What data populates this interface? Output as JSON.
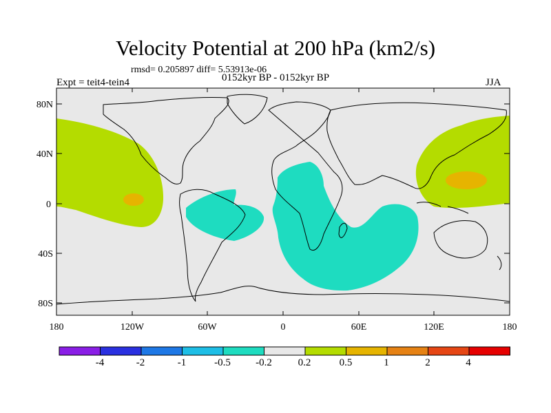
{
  "header": {
    "title": "Velocity Potential at 200 hPa (km2/s)",
    "rmsd_line": "rmsd= 0.205897 diff= 5.53913e-06",
    "period": "0152kyr BP - 0152kyr BP",
    "expt": "Expt = teit4-tein4",
    "season": "JJA"
  },
  "axes": {
    "lat_labels": [
      "80N",
      "40N",
      "0",
      "40S",
      "80S"
    ],
    "lon_labels": [
      "180",
      "120W",
      "60W",
      "0",
      "60E",
      "120E",
      "180"
    ]
  },
  "colorbar": {
    "colors": [
      "#8a1ee6",
      "#2a30e0",
      "#1e78e6",
      "#1ebee6",
      "#1edcc0",
      "#e8e8e8",
      "#b4dc00",
      "#e6b400",
      "#e68214",
      "#e64614",
      "#e60000"
    ],
    "labels": [
      "-4",
      "-2",
      "-1",
      "-0.5",
      "-0.2",
      "0.2",
      "0.5",
      "1",
      "2",
      "4"
    ]
  },
  "colors": {
    "ocean_land": "#e8e8e8",
    "negative": "#1edcc0",
    "positive": "#b4dc00",
    "strong_positive": "#e6b400"
  }
}
